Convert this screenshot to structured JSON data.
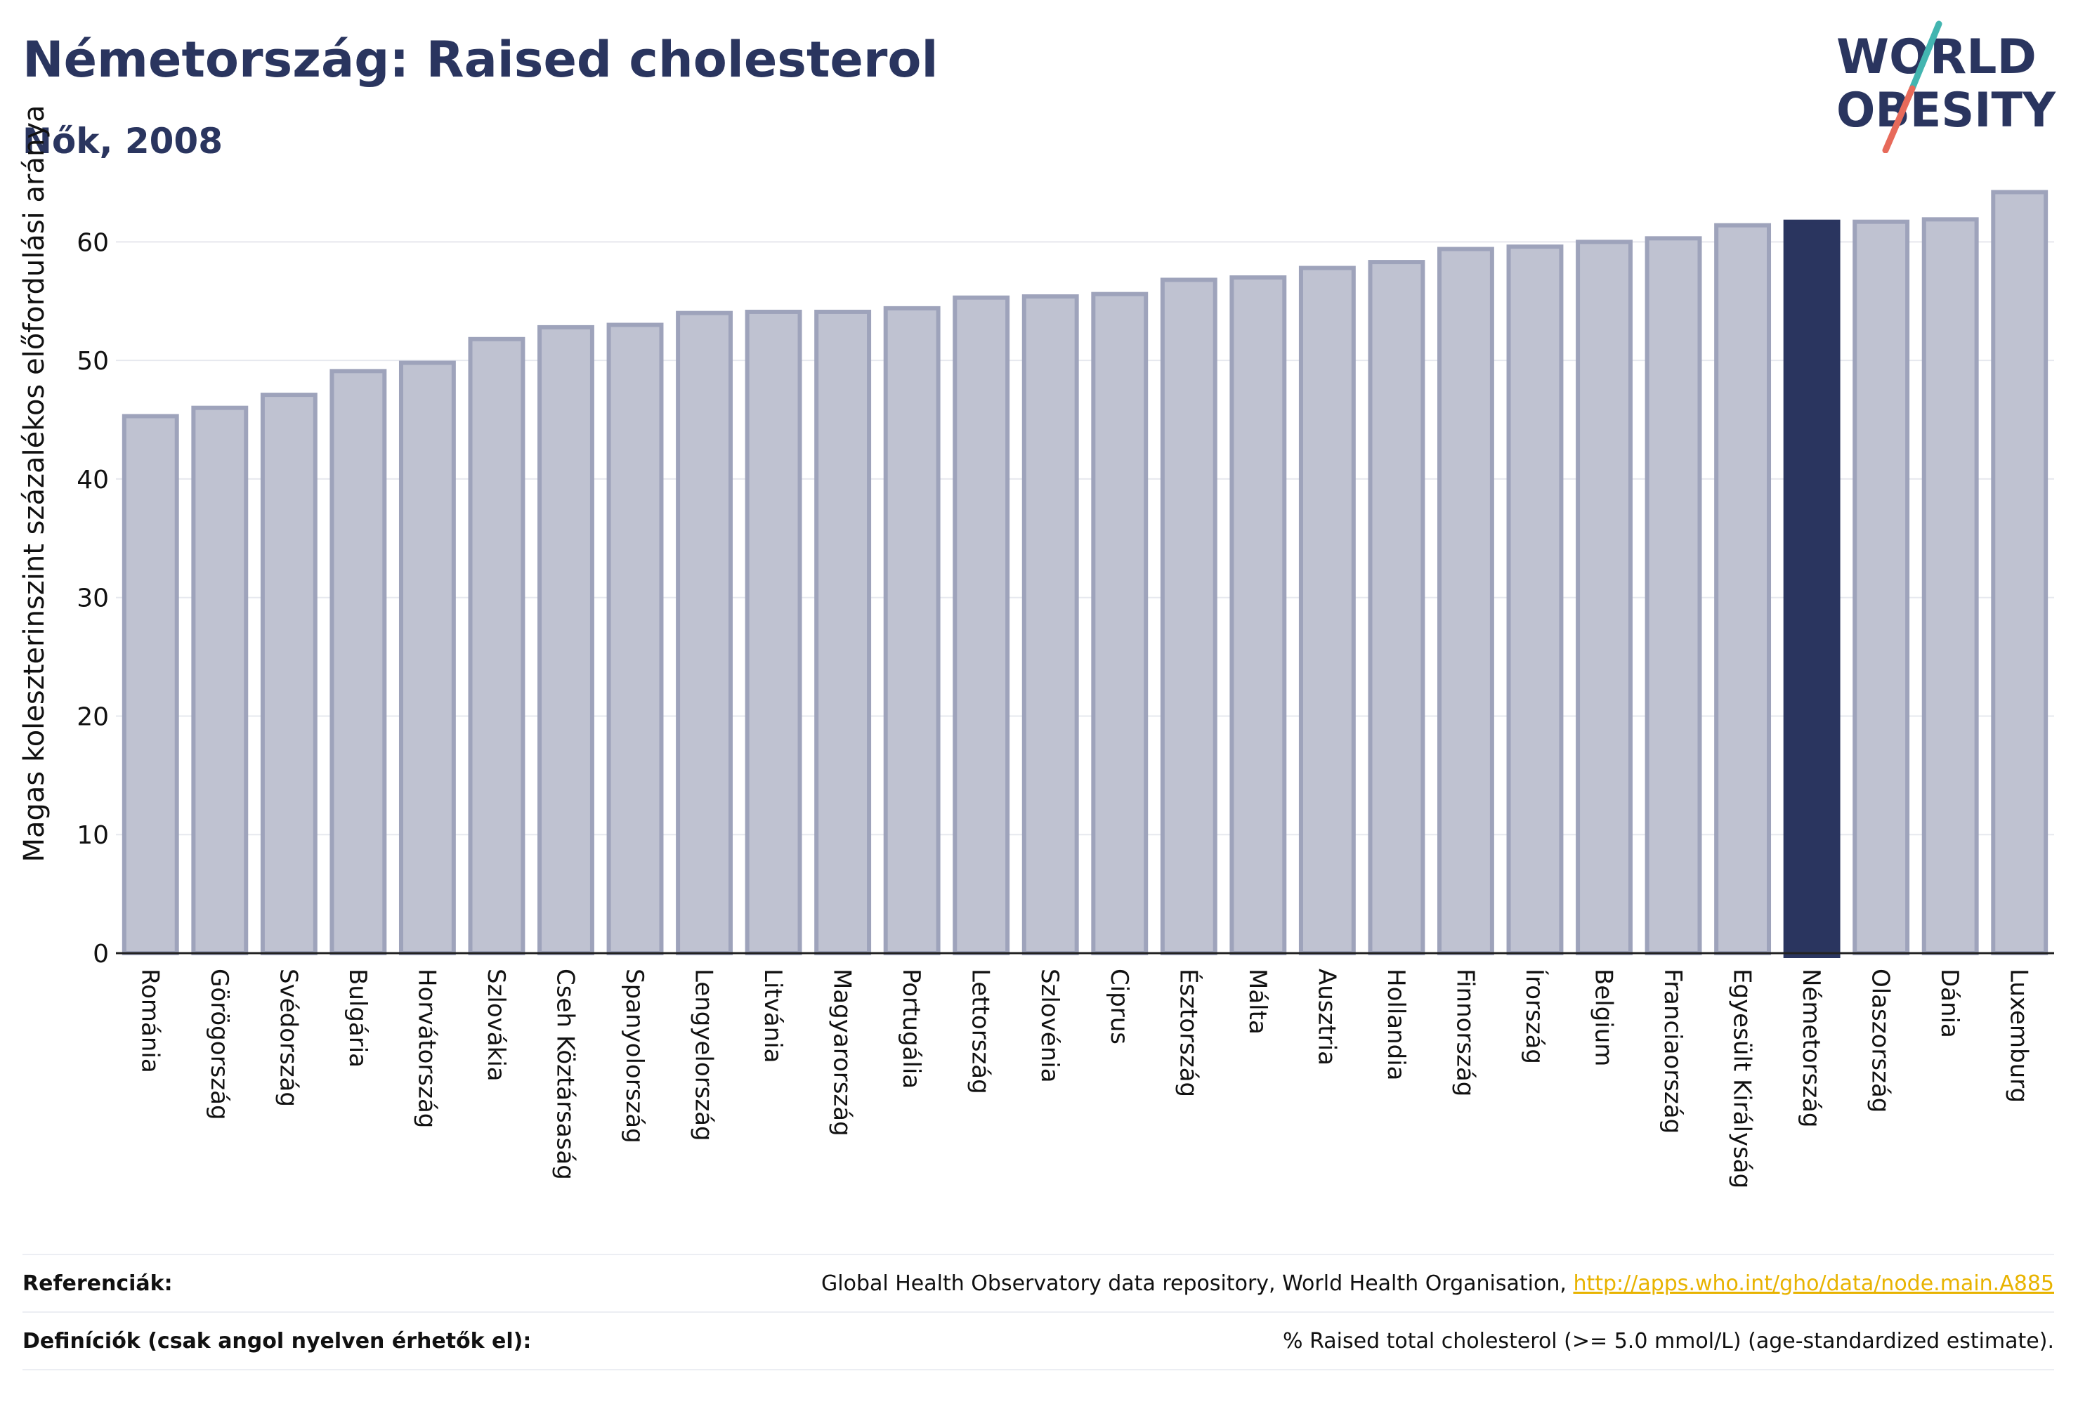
{
  "header": {
    "title": "Németország: Raised cholesterol",
    "subtitle": "Nők, 2008"
  },
  "logo": {
    "line1": "WORLD",
    "line2": "OBESITY",
    "accent_colors": [
      "#43b5b0",
      "#e76a5a"
    ]
  },
  "colors": {
    "bar_fill": "#bfc2d1",
    "bar_stroke": "#9ea3bb",
    "highlight": "#2a355f",
    "axis_text": "#111111"
  },
  "chart_data": {
    "type": "bar",
    "ylabel": "Magas koleszterinszint százalékos előfordulási aránya",
    "ylim": [
      0,
      65
    ],
    "yticks": [
      0,
      10,
      20,
      30,
      40,
      50,
      60
    ],
    "grid": true,
    "highlight": "Németország",
    "categories": [
      "Románia",
      "Görögország",
      "Svédország",
      "Bulgária",
      "Horvátország",
      "Szlovákia",
      "Cseh Köztársaság",
      "Spanyolország",
      "Lengyelország",
      "Litvánia",
      "Magyarország",
      "Portugália",
      "Lettország",
      "Szlovénia",
      "Ciprus",
      "Észtország",
      "Málta",
      "Ausztria",
      "Hollandia",
      "Finnország",
      "Írország",
      "Belgium",
      "Franciaország",
      "Egyesült Királyság",
      "Németország",
      "Olaszország",
      "Dánia",
      "Luxemburg"
    ],
    "values": [
      45.3,
      46.0,
      47.1,
      49.1,
      49.8,
      51.8,
      52.8,
      53.0,
      54.0,
      54.1,
      54.1,
      54.4,
      55.3,
      55.4,
      55.6,
      56.8,
      57.0,
      57.8,
      58.3,
      59.4,
      59.6,
      60.0,
      60.3,
      61.4,
      61.7,
      61.7,
      61.9,
      64.2
    ]
  },
  "footer": {
    "ref_label": "Referenciák:",
    "ref_text": "Global Health Observatory data repository, World Health Organisation, ",
    "ref_link": "http://apps.who.int/gho/data/node.main.A885",
    "def_label": "Definíciók (csak angol nyelven érhetők el):",
    "def_text": "% Raised total cholesterol (>= 5.0 mmol/L) (age-standardized estimate)."
  }
}
